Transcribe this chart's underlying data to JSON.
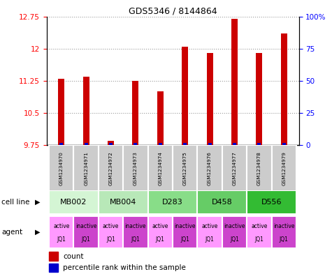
{
  "title": "GDS5346 / 8144864",
  "samples": [
    "GSM1234970",
    "GSM1234971",
    "GSM1234972",
    "GSM1234973",
    "GSM1234974",
    "GSM1234975",
    "GSM1234976",
    "GSM1234977",
    "GSM1234978",
    "GSM1234979"
  ],
  "count_values": [
    11.3,
    11.35,
    9.85,
    11.25,
    11.0,
    12.05,
    11.9,
    12.7,
    11.9,
    12.35
  ],
  "percentile_values": [
    2,
    2,
    2,
    2,
    2,
    2,
    2,
    2,
    2,
    2
  ],
  "ylim_left": [
    9.75,
    12.75
  ],
  "ylim_right": [
    0,
    100
  ],
  "yticks_left": [
    9.75,
    10.5,
    11.25,
    12.0,
    12.75
  ],
  "yticks_right": [
    0,
    25,
    50,
    75,
    100
  ],
  "ytick_labels_left": [
    "9.75",
    "10.5",
    "11.25",
    "12",
    "12.75"
  ],
  "ytick_labels_right": [
    "0",
    "25",
    "50",
    "75",
    "100%"
  ],
  "cell_line_groups": [
    {
      "label": "MB002",
      "start": 0,
      "end": 2,
      "color": "#d4f5d4"
    },
    {
      "label": "MB004",
      "start": 2,
      "end": 4,
      "color": "#b8e8b8"
    },
    {
      "label": "D283",
      "start": 4,
      "end": 6,
      "color": "#88dd88"
    },
    {
      "label": "D458",
      "start": 6,
      "end": 8,
      "color": "#66cc66"
    },
    {
      "label": "D556",
      "start": 8,
      "end": 10,
      "color": "#33bb33"
    }
  ],
  "agent_labels": [
    "active",
    "inactive",
    "active",
    "inactive",
    "active",
    "inactive",
    "active",
    "inactive",
    "active",
    "inactive"
  ],
  "agent_active_color": "#ff99ff",
  "agent_inactive_color": "#cc44cc",
  "bar_color": "#cc0000",
  "percentile_color": "#0000cc",
  "bar_bottom": 9.75,
  "legend_count_color": "#cc0000",
  "legend_pct_color": "#0000cc",
  "sample_box_color": "#cccccc",
  "bar_width": 0.25
}
